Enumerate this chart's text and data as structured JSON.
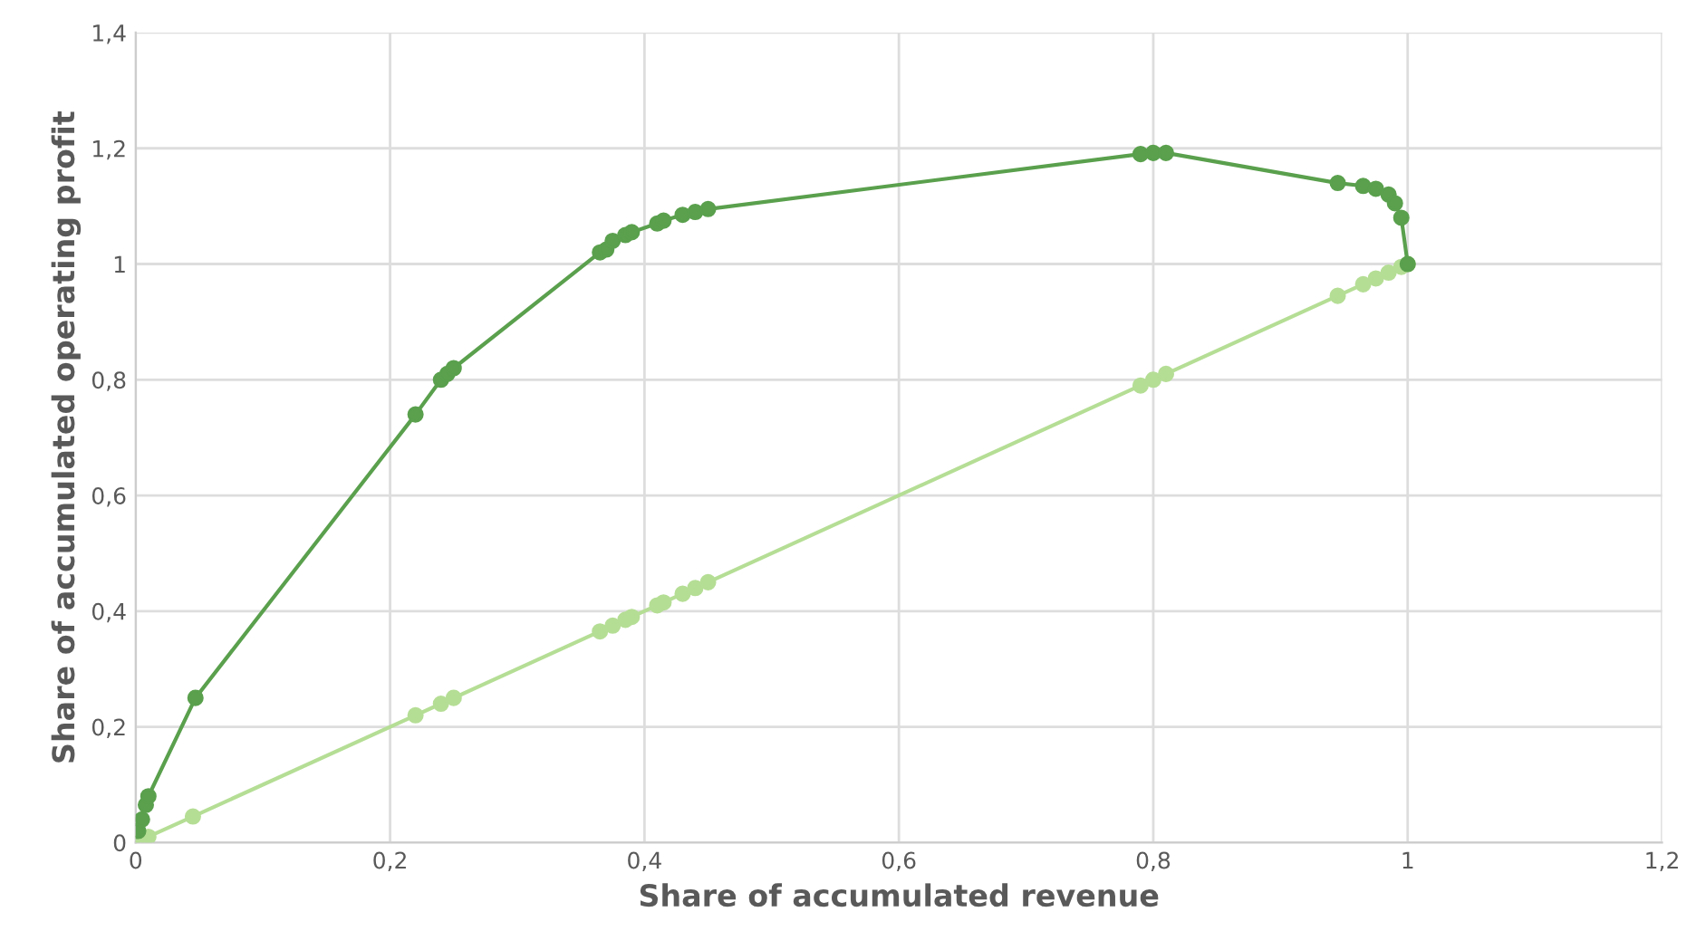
{
  "chart_data": {
    "type": "line",
    "xlabel": "Share of accumulated revenue",
    "ylabel": "Share of accumulated operating profit",
    "xlim": [
      0,
      1.2
    ],
    "ylim": [
      0,
      1.4
    ],
    "xticks": [
      0,
      {
        "value": 0.2,
        "label": "0,2"
      },
      {
        "value": 0.4,
        "label": "0,4"
      },
      {
        "value": 0.6,
        "label": "0,6"
      },
      {
        "value": 0.8,
        "label": "0,8"
      },
      1,
      {
        "value": 1.2,
        "label": "1,2"
      }
    ],
    "yticks": [
      0,
      {
        "value": 0.2,
        "label": "0,2"
      },
      {
        "value": 0.4,
        "label": "0,4"
      },
      {
        "value": 0.6,
        "label": "0,6"
      },
      {
        "value": 0.8,
        "label": "0,8"
      },
      1,
      {
        "value": 1.2,
        "label": "1,2"
      },
      {
        "value": 1.4,
        "label": "1,4"
      }
    ],
    "grid": true,
    "marker": "circle",
    "line_style": "solid",
    "legend": false,
    "series": [
      {
        "color": "#b5de95",
        "x": [
          0,
          0.01,
          0.045,
          0.22,
          0.24,
          0.25,
          0.365,
          0.375,
          0.385,
          0.39,
          0.41,
          0.415,
          0.43,
          0.44,
          0.45,
          0.79,
          0.8,
          0.81,
          0.945,
          0.965,
          0.975,
          0.985,
          0.995,
          1
        ],
        "values": [
          0,
          0.01,
          0.045,
          0.22,
          0.24,
          0.25,
          0.365,
          0.375,
          0.385,
          0.39,
          0.41,
          0.415,
          0.43,
          0.44,
          0.45,
          0.79,
          0.8,
          0.81,
          0.945,
          0.965,
          0.975,
          0.985,
          0.995,
          1
        ]
      },
      {
        "color": "#5aa04d",
        "x": [
          0.002,
          0.005,
          0.008,
          0.01,
          0.047,
          0.22,
          0.24,
          0.245,
          0.25,
          0.365,
          0.37,
          0.375,
          0.385,
          0.39,
          0.41,
          0.415,
          0.43,
          0.44,
          0.45,
          0.79,
          0.8,
          0.81,
          0.945,
          0.965,
          0.975,
          0.985,
          0.99,
          0.995,
          1
        ],
        "values": [
          0.02,
          0.04,
          0.065,
          0.08,
          0.25,
          0.74,
          0.8,
          0.81,
          0.82,
          1.02,
          1.025,
          1.04,
          1.05,
          1.055,
          1.07,
          1.075,
          1.085,
          1.09,
          1.095,
          1.19,
          1.192,
          1.192,
          1.14,
          1.135,
          1.13,
          1.12,
          1.105,
          1.08,
          1
        ]
      }
    ]
  }
}
